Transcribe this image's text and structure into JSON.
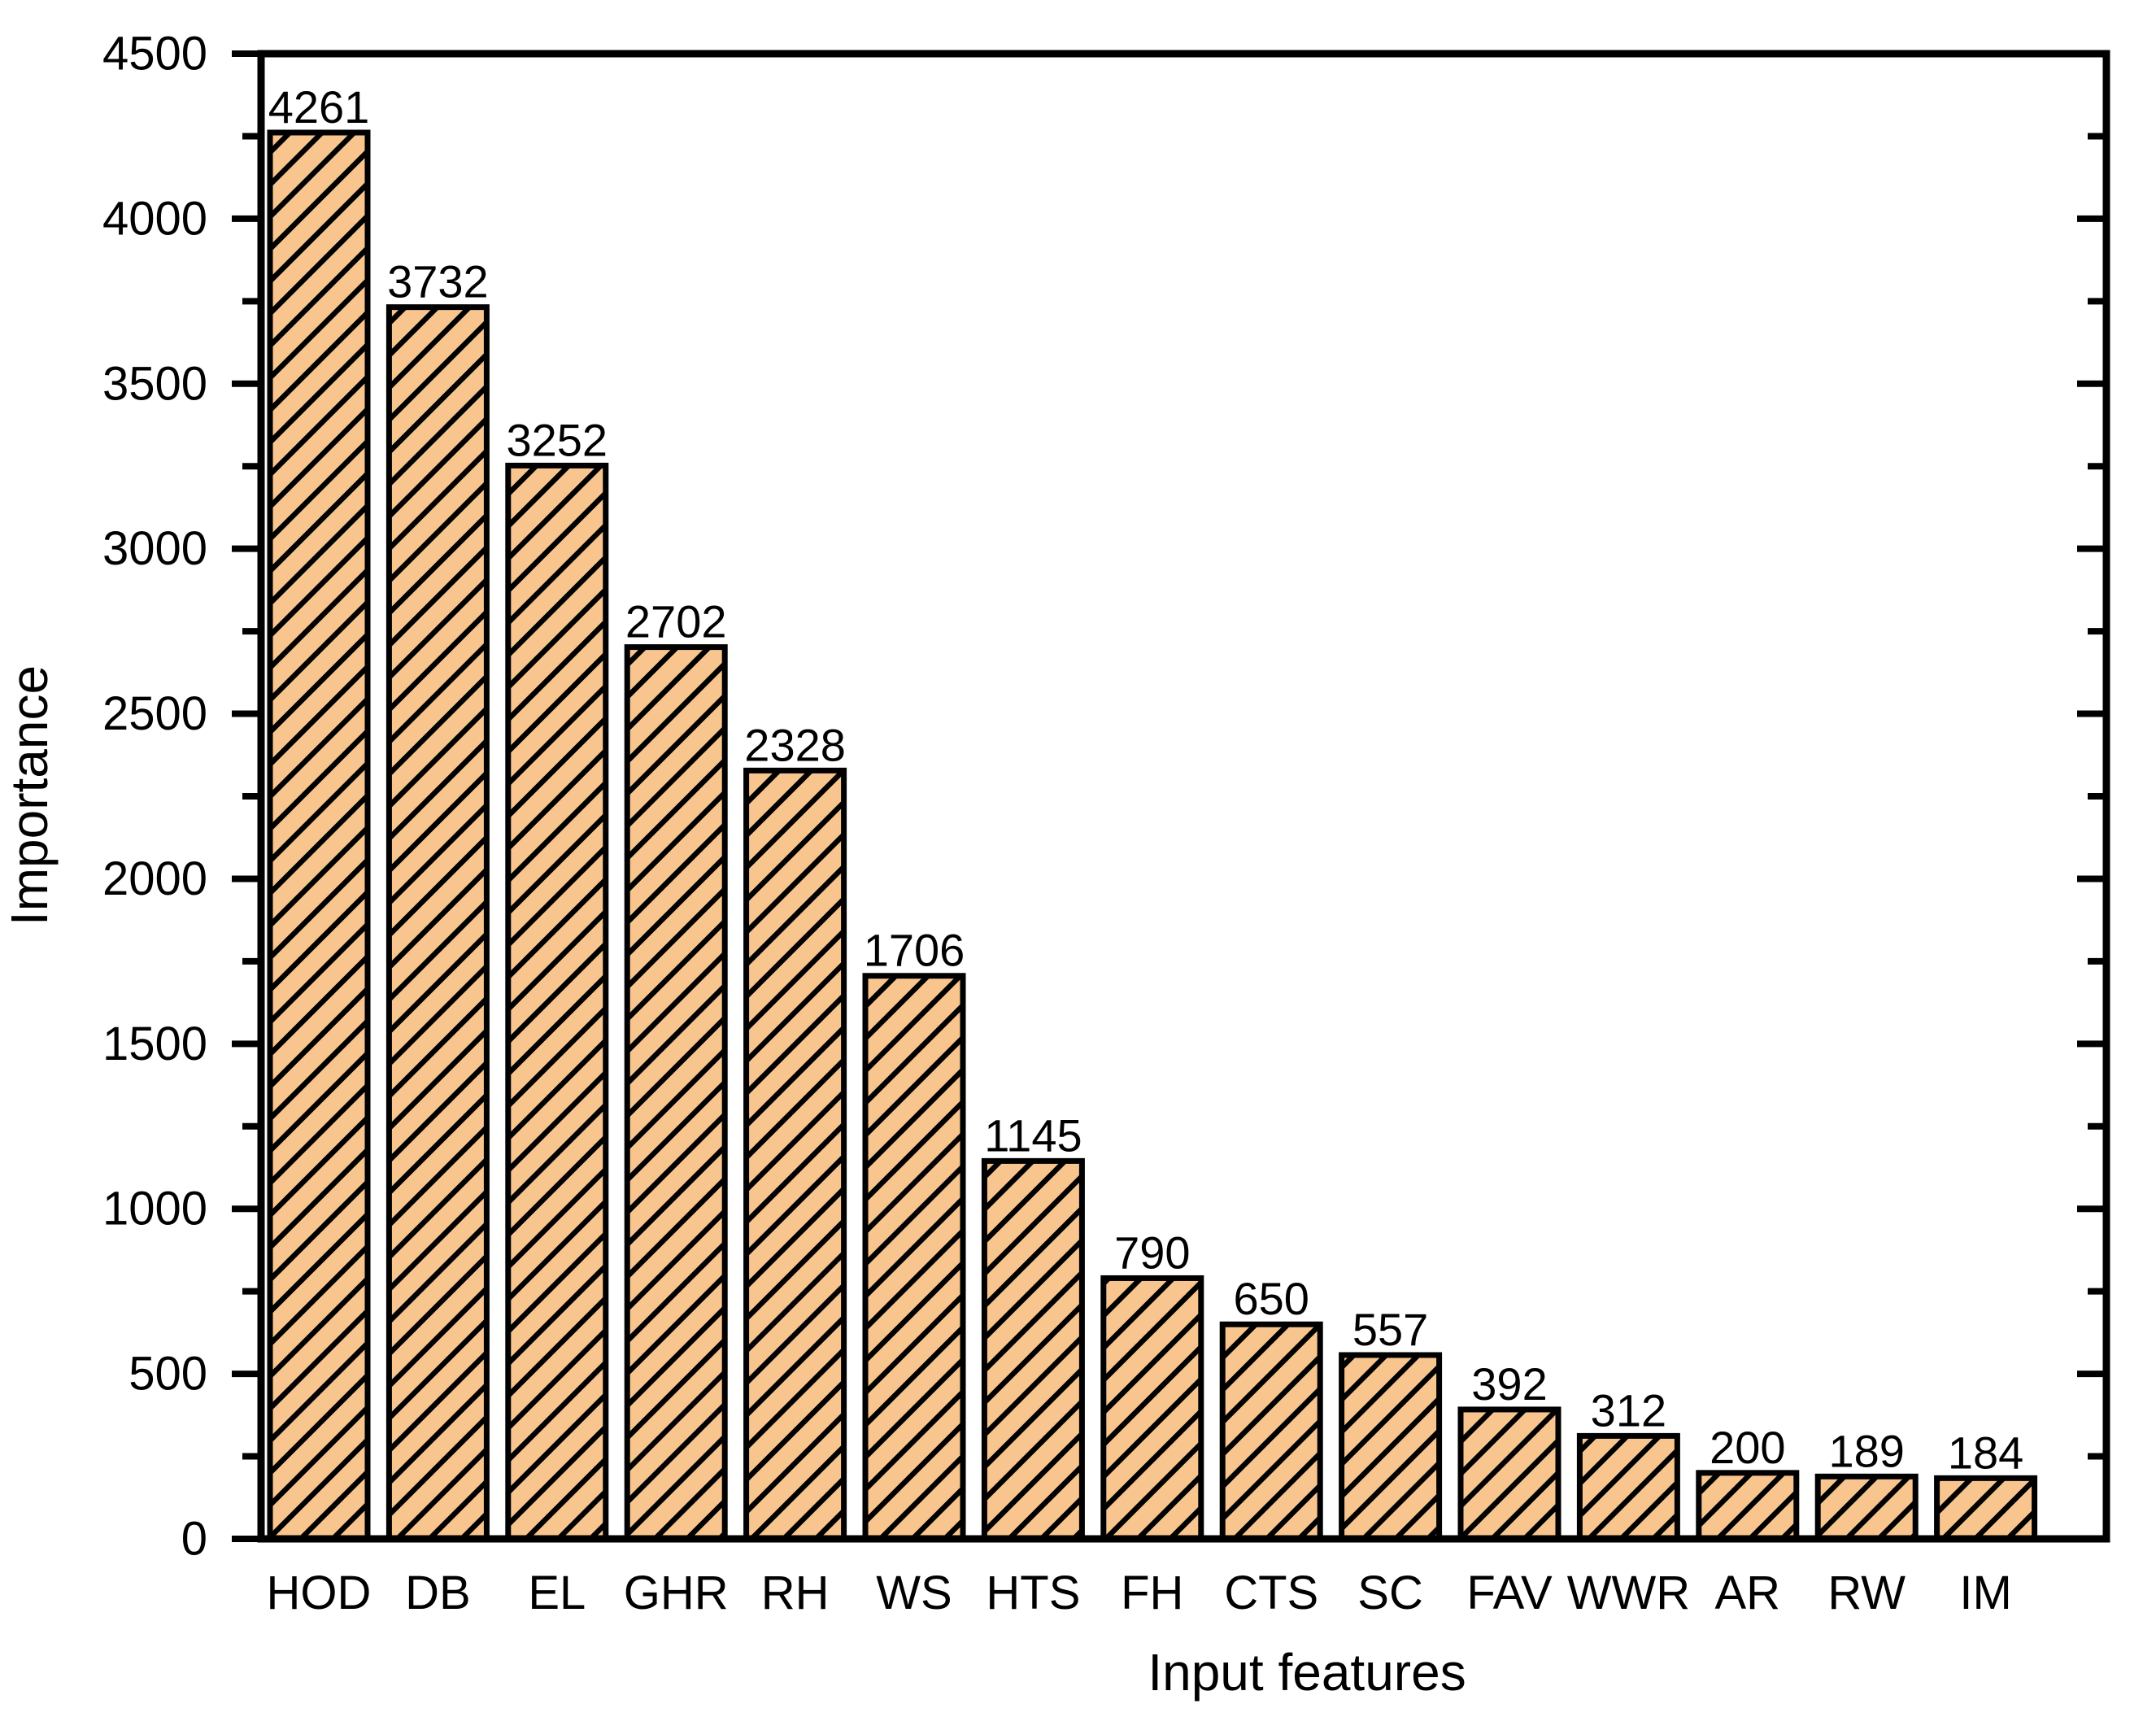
{
  "figure": {
    "background": "#FFFFFF"
  },
  "chart_data": {
    "type": "bar",
    "title": "",
    "categories": [
      "HOD",
      "DB",
      "EL",
      "GHR",
      "RH",
      "WS",
      "HTS",
      "FH",
      "CTS",
      "SC",
      "FAV",
      "WWR",
      "AR",
      "RW",
      "IM"
    ],
    "values": [
      4261,
      3732,
      3252,
      2702,
      2328,
      1706,
      1145,
      790,
      650,
      557,
      392,
      312,
      200,
      189,
      184
    ],
    "value_labels": [
      "4261",
      "3732",
      "3252",
      "2702",
      "2328",
      "1706",
      "1145",
      "790",
      "650",
      "557",
      "392",
      "312",
      "200",
      "189",
      "184"
    ],
    "xlabel": "Input features",
    "ylabel": "Importance",
    "ylim": [
      0,
      4500
    ],
    "ytick_major_step": 500,
    "ytick_minor_step": 250,
    "ytick_labels": [
      "0",
      "500",
      "1000",
      "1500",
      "2000",
      "2500",
      "3000",
      "3500",
      "4000",
      "4500"
    ],
    "grid": false,
    "legend": "none",
    "show_value_labels": true,
    "bar_fill": "#F9C58F",
    "hatch_color": "#000000",
    "hatch_style": "diagonal-forward",
    "axis_color": "#000000"
  }
}
